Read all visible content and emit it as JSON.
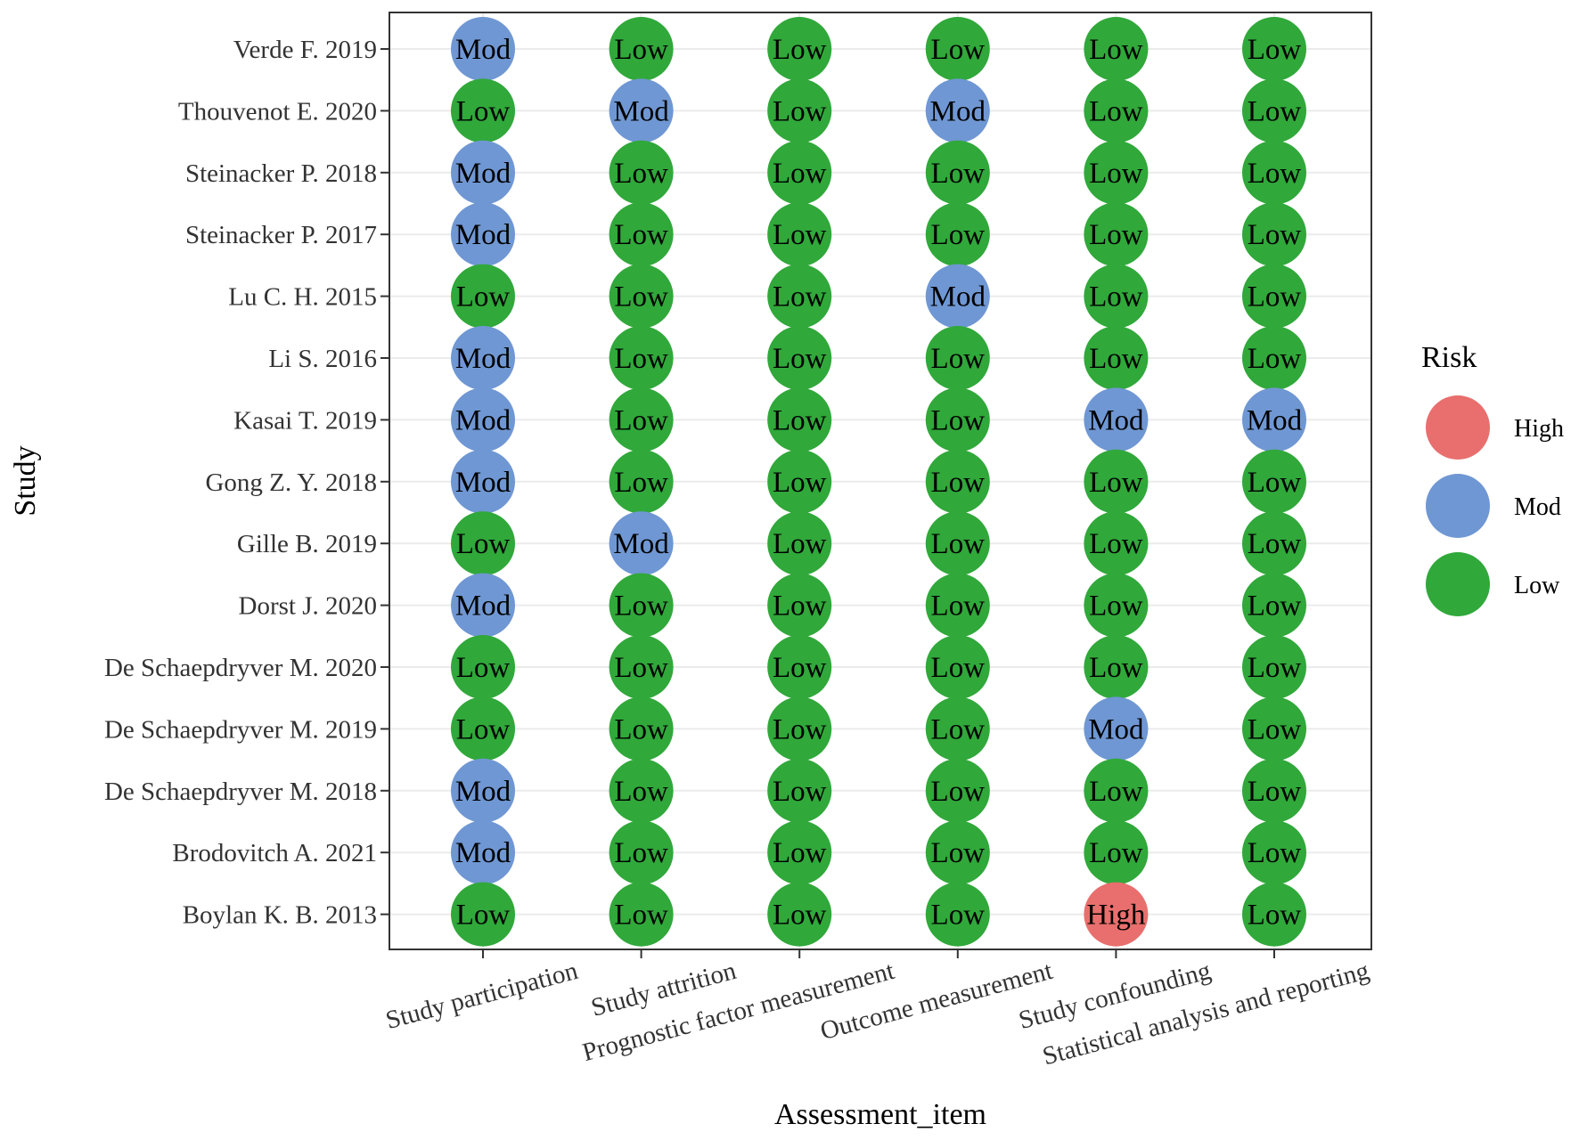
{
  "chart_data": {
    "type": "scatter",
    "xlabel": "Assessment_item",
    "ylabel": "Study",
    "x": [
      "Study participation",
      "Study attrition",
      "Prognostic factor measurement",
      "Outcome measurement",
      "Study confounding",
      "Statistical analysis and reporting"
    ],
    "y": [
      "Verde F. 2019",
      "Thouvenot E. 2020",
      "Steinacker P. 2018",
      "Steinacker P. 2017",
      "Lu C. H. 2015",
      "Li S. 2016",
      "Kasai T. 2019",
      "Gong Z. Y. 2018",
      "Gille B. 2019",
      "Dorst J. 2020",
      "De Schaepdryver M. 2020",
      "De Schaepdryver M. 2019",
      "De Schaepdryver M. 2018",
      "Brodovitch A. 2021",
      "Boylan K. B. 2013"
    ],
    "values": [
      [
        "Mod",
        "Low",
        "Low",
        "Low",
        "Low",
        "Low"
      ],
      [
        "Low",
        "Mod",
        "Low",
        "Mod",
        "Low",
        "Low"
      ],
      [
        "Mod",
        "Low",
        "Low",
        "Low",
        "Low",
        "Low"
      ],
      [
        "Mod",
        "Low",
        "Low",
        "Low",
        "Low",
        "Low"
      ],
      [
        "Low",
        "Low",
        "Low",
        "Mod",
        "Low",
        "Low"
      ],
      [
        "Mod",
        "Low",
        "Low",
        "Low",
        "Low",
        "Low"
      ],
      [
        "Mod",
        "Low",
        "Low",
        "Low",
        "Mod",
        "Mod"
      ],
      [
        "Mod",
        "Low",
        "Low",
        "Low",
        "Low",
        "Low"
      ],
      [
        "Low",
        "Mod",
        "Low",
        "Low",
        "Low",
        "Low"
      ],
      [
        "Mod",
        "Low",
        "Low",
        "Low",
        "Low",
        "Low"
      ],
      [
        "Low",
        "Low",
        "Low",
        "Low",
        "Low",
        "Low"
      ],
      [
        "Low",
        "Low",
        "Low",
        "Low",
        "Mod",
        "Low"
      ],
      [
        "Mod",
        "Low",
        "Low",
        "Low",
        "Low",
        "Low"
      ],
      [
        "Mod",
        "Low",
        "Low",
        "Low",
        "Low",
        "Low"
      ],
      [
        "Low",
        "Low",
        "Low",
        "Low",
        "High",
        "Low"
      ]
    ],
    "legend": {
      "title": "Risk",
      "placement": "right",
      "entries": [
        {
          "label": "High",
          "color": "#e86f6d"
        },
        {
          "label": "Mod",
          "color": "#6f97d3"
        },
        {
          "label": "Low",
          "color": "#30a83a"
        }
      ]
    },
    "grid": true
  }
}
